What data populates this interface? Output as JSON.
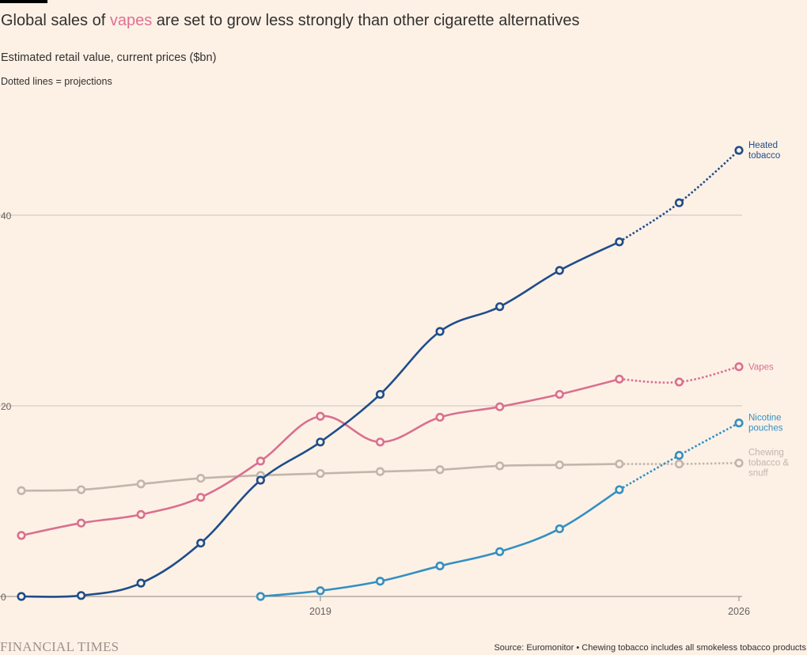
{
  "header": {
    "title_prefix": "Global sales of ",
    "title_highlight": "vapes",
    "title_suffix": " are set to grow less strongly than other cigarette alternatives",
    "subtitle": "Estimated retail value, current prices ($bn)",
    "note": "Dotted lines = projections"
  },
  "footer": {
    "brand": "FINANCIAL TIMES",
    "source": "Source: Euromonitor • Chewing tobacco includes all smokeless tobacco products"
  },
  "colors": {
    "background": "#fdf1e6",
    "heated": "#1f4d89",
    "vapes": "#d9708f",
    "nicotine": "#3390c2",
    "chewing": "#c2b6ac",
    "grid": "#ccc2b9",
    "highlight": "#e07095"
  },
  "chart_data": {
    "type": "line",
    "title": "Global sales of vapes are set to grow less strongly than other cigarette alternatives",
    "ylabel": "",
    "xlabel": "",
    "ylim": [
      0,
      48
    ],
    "xlim": [
      2014,
      2026
    ],
    "y_ticks": [
      0,
      20,
      40
    ],
    "x_ticks": [
      2019,
      2026
    ],
    "grid": "horizontal",
    "projection_start": 2024,
    "series": [
      {
        "name": "Heated tobacco",
        "color_key": "heated",
        "x": [
          2014,
          2015,
          2016,
          2017,
          2018,
          2019,
          2020,
          2021,
          2022,
          2023,
          2024,
          2025,
          2026
        ],
        "values": [
          0.0,
          0.1,
          1.4,
          5.6,
          12.2,
          16.2,
          21.2,
          27.8,
          30.4,
          34.2,
          37.2,
          41.3,
          46.8
        ]
      },
      {
        "name": "Vapes",
        "color_key": "vapes",
        "x": [
          2014,
          2015,
          2016,
          2017,
          2018,
          2019,
          2020,
          2021,
          2022,
          2023,
          2024,
          2025,
          2026
        ],
        "values": [
          6.4,
          7.7,
          8.6,
          10.4,
          14.2,
          18.9,
          16.2,
          18.8,
          19.9,
          21.2,
          22.8,
          22.5,
          24.1
        ]
      },
      {
        "name": "Nicotine pouches",
        "color_key": "nicotine",
        "x": [
          2018,
          2019,
          2020,
          2021,
          2022,
          2023,
          2024,
          2025,
          2026
        ],
        "values": [
          0.0,
          0.6,
          1.6,
          3.2,
          4.7,
          7.1,
          11.2,
          14.8,
          18.2
        ]
      },
      {
        "name": "Chewing tobacco & snuff",
        "color_key": "chewing",
        "x": [
          2014,
          2015,
          2016,
          2017,
          2018,
          2019,
          2020,
          2021,
          2022,
          2023,
          2024,
          2025,
          2026
        ],
        "values": [
          11.1,
          11.2,
          11.8,
          12.4,
          12.7,
          12.9,
          13.1,
          13.3,
          13.7,
          13.8,
          13.9,
          13.9,
          14.0
        ]
      }
    ],
    "series_labels": [
      {
        "series": "Heated tobacco",
        "lines": [
          "Heated",
          "tobacco"
        ]
      },
      {
        "series": "Vapes",
        "lines": [
          "Vapes"
        ]
      },
      {
        "series": "Nicotine pouches",
        "lines": [
          "Nicotine",
          "pouches"
        ]
      },
      {
        "series": "Chewing tobacco & snuff",
        "lines": [
          "Chewing",
          "tobacco &",
          "snuff"
        ]
      }
    ]
  }
}
